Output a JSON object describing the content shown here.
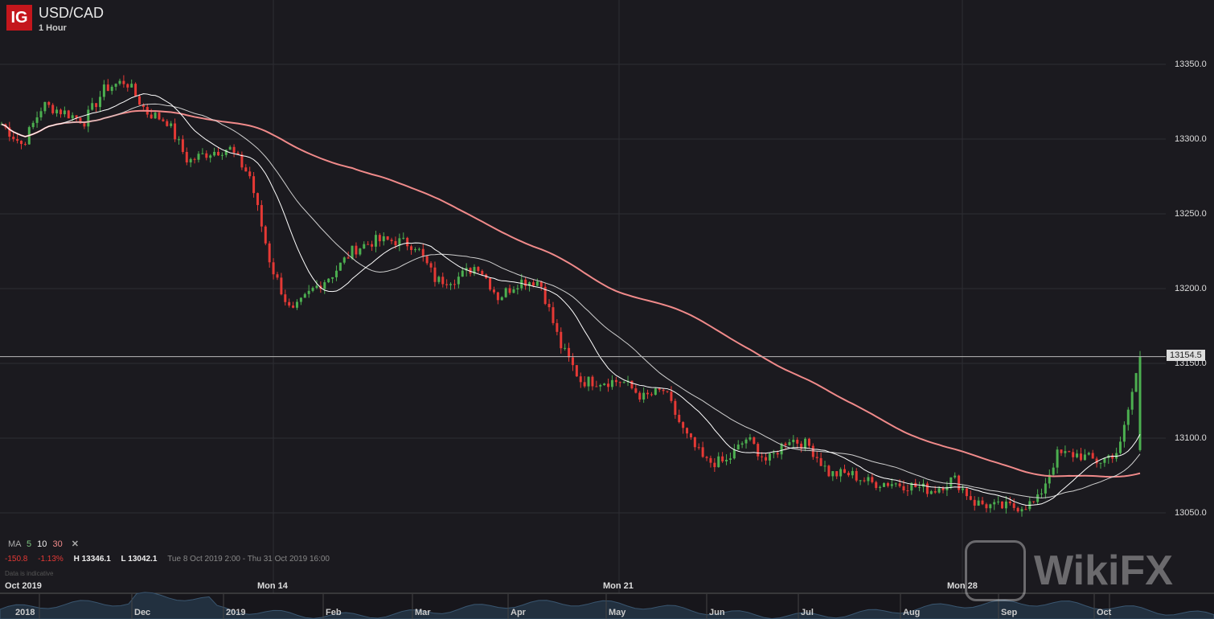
{
  "header": {
    "logo": "IG",
    "symbol": "USD/CAD",
    "timeframe": "1 Hour"
  },
  "indicator": {
    "name": "MA",
    "p1": "5",
    "p2": "10",
    "p3": "30",
    "close": "✕"
  },
  "stats": {
    "change": "-150.8",
    "change_pct": "-1.13%",
    "high": "H 13346.1",
    "low": "L 13042.1",
    "range": "Tue 8 Oct 2019 2:00 - Thu 31 Oct 2019 16:00",
    "note": "Data is indicative"
  },
  "current_price": "13154.5",
  "time_axis": [
    "Oct 2019",
    "Mon 14",
    "Mon 21",
    "Mon 28"
  ],
  "navigator_labels": [
    "2018",
    "Dec",
    "2019",
    "Feb",
    "Mar",
    "Apr",
    "May",
    "Jun",
    "Jul",
    "Aug",
    "Sep",
    "Oct"
  ],
  "watermark": "WikiFX",
  "colors": {
    "up": "#4caf50",
    "down": "#e53935",
    "ma5": "#ffffff",
    "ma10": "#cfcfcf",
    "ma30": "#f08a8a",
    "bg": "#1b1a1f"
  },
  "chart_data": {
    "type": "candlestick",
    "title": "USD/CAD",
    "y_ticks": [
      13050.0,
      13100.0,
      13150.0,
      13200.0,
      13250.0,
      13300.0,
      13350.0
    ],
    "ylim": [
      13030,
      13370
    ],
    "grid": true,
    "approx_close_path": [
      13310,
      13296,
      13323,
      13318,
      13312,
      13334,
      13339,
      13318,
      13312,
      13285,
      13291,
      13294,
      13275,
      13216,
      13183,
      13199,
      13210,
      13226,
      13232,
      13232,
      13229,
      13205,
      13207,
      13216,
      13194,
      13205,
      13205,
      13162,
      13138,
      13138,
      13138,
      13127,
      13132,
      13103,
      13084,
      13084,
      13100,
      13084,
      13100,
      13095,
      13076,
      13076,
      13070,
      13070,
      13068,
      13065,
      13073,
      13057,
      13054,
      13054,
      13057,
      13089,
      13089,
      13084,
      13092,
      13154.5
    ],
    "moving_averages": [
      5,
      10,
      30
    ]
  }
}
